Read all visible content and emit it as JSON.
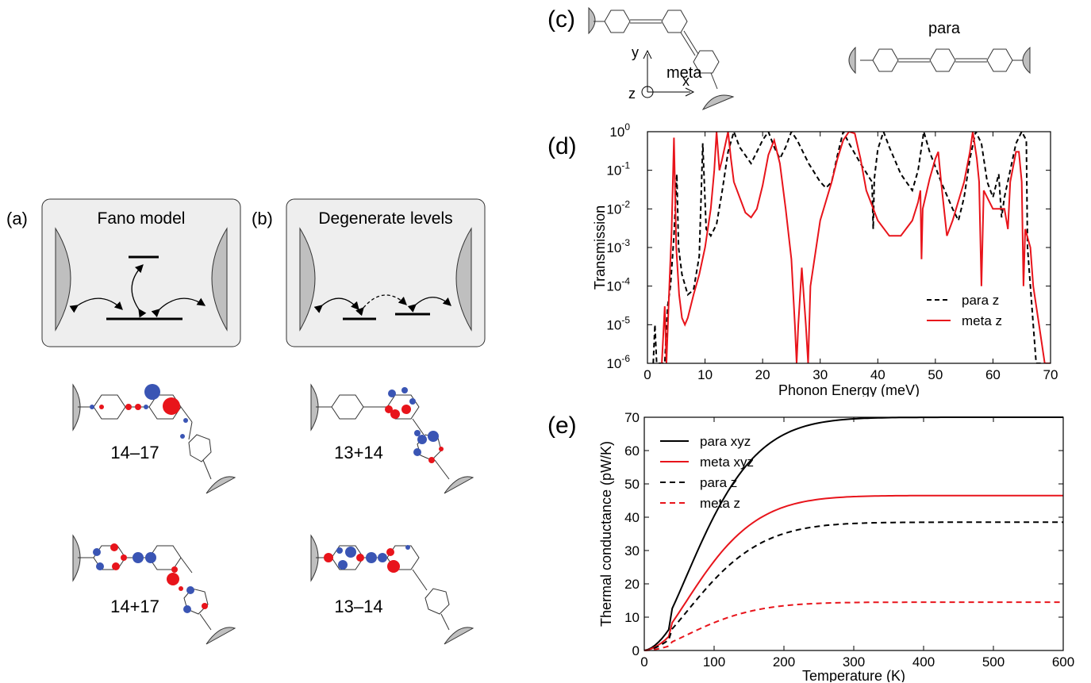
{
  "figure": {
    "panel_a": {
      "label": "(a)",
      "title": "Fano model"
    },
    "panel_b": {
      "label": "(b)",
      "title": "Degenerate levels"
    },
    "orbitals": [
      {
        "label": "14–17"
      },
      {
        "label": "13+14"
      },
      {
        "label": "14+17"
      },
      {
        "label": "13–14"
      }
    ],
    "panel_c": {
      "label": "(c)",
      "meta": "meta",
      "para": "para",
      "axes": {
        "y": "y",
        "x": "x",
        "z": "z"
      }
    },
    "panel_d": {
      "label": "(d)"
    },
    "panel_e": {
      "label": "(e)"
    },
    "colors": {
      "red": "#e8141b",
      "blue": "#3a55b4",
      "gray": "#bfbfbf",
      "box": "#eeeeee"
    }
  },
  "chart_data": [
    {
      "id": "d",
      "type": "line",
      "xlabel": "Phonon Energy  (meV)",
      "ylabel": "Transmission",
      "xlim": [
        0,
        70
      ],
      "ylim": [
        1e-06,
        1
      ],
      "yscale": "log",
      "xticks": [
        "0",
        "10",
        "20",
        "30",
        "40",
        "50",
        "60",
        "70"
      ],
      "yticks": [
        {
          "base": "10",
          "exp": "-6"
        },
        {
          "base": "10",
          "exp": "-5"
        },
        {
          "base": "10",
          "exp": "-4"
        },
        {
          "base": "10",
          "exp": "-3"
        },
        {
          "base": "10",
          "exp": "-2"
        },
        {
          "base": "10",
          "exp": "-1"
        },
        {
          "base": "10",
          "exp": "0"
        }
      ],
      "legend_position": "bottom-right",
      "series": [
        {
          "name": "para z",
          "color": "#000000",
          "dash": true,
          "points": [
            [
              1,
              1e-06
            ],
            [
              1.3,
              1e-05
            ],
            [
              1.6,
              1e-06
            ],
            [
              3,
              1e-06
            ],
            [
              3.5,
              3e-05
            ],
            [
              4,
              0.0001
            ],
            [
              4.6,
              0.002
            ],
            [
              5.1,
              0.08
            ],
            [
              5.4,
              0.001
            ],
            [
              6,
              0.0002
            ],
            [
              7,
              6e-05
            ],
            [
              8,
              8e-05
            ],
            [
              9,
              0.0006
            ],
            [
              9.6,
              0.5
            ],
            [
              10.2,
              0.003
            ],
            [
              11,
              0.002
            ],
            [
              12,
              0.004
            ],
            [
              13,
              0.03
            ],
            [
              14,
              0.3
            ],
            [
              15,
              1
            ],
            [
              16,
              0.4
            ],
            [
              18,
              0.15
            ],
            [
              20,
              0.6
            ],
            [
              21,
              1
            ],
            [
              22,
              0.4
            ],
            [
              23,
              0.2
            ],
            [
              24,
              0.4
            ],
            [
              25,
              1
            ],
            [
              26,
              0.6
            ],
            [
              28,
              0.15
            ],
            [
              30,
              0.05
            ],
            [
              31,
              0.035
            ],
            [
              32,
              0.05
            ],
            [
              33,
              0.25
            ],
            [
              34,
              1
            ],
            [
              35,
              0.5
            ],
            [
              37,
              0.15
            ],
            [
              39,
              0.05
            ],
            [
              39.2,
              0.003
            ],
            [
              39.4,
              0.06
            ],
            [
              40,
              0.35
            ],
            [
              41,
              1
            ],
            [
              42,
              0.4
            ],
            [
              44,
              0.08
            ],
            [
              46,
              0.03
            ],
            [
              47,
              0.1
            ],
            [
              48,
              1
            ],
            [
              49,
              0.3
            ],
            [
              51,
              0.05
            ],
            [
              53,
              0.01
            ],
            [
              54,
              0.005
            ],
            [
              55,
              0.02
            ],
            [
              56,
              0.2
            ],
            [
              57,
              1
            ],
            [
              58,
              0.5
            ],
            [
              59,
              0.05
            ],
            [
              60,
              0.02
            ],
            [
              61,
              0.08
            ],
            [
              61.5,
              0.006
            ],
            [
              62,
              0.02
            ],
            [
              63,
              0.1
            ],
            [
              64,
              0.5
            ],
            [
              65,
              1
            ],
            [
              65.8,
              0.6
            ],
            [
              66,
              0.001
            ],
            [
              66.5,
              0.0001
            ],
            [
              67,
              1e-05
            ],
            [
              67.5,
              1e-06
            ],
            [
              69,
              1e-06
            ]
          ]
        },
        {
          "name": "meta z",
          "color": "#e8141b",
          "dash": false,
          "points": [
            [
              2.5,
              1e-06
            ],
            [
              3,
              3e-05
            ],
            [
              3.3,
              1e-06
            ],
            [
              3.8,
              0.0001
            ],
            [
              4.2,
              0.003
            ],
            [
              4.6,
              0.7
            ],
            [
              5,
              0.001
            ],
            [
              5.5,
              6e-05
            ],
            [
              6,
              1.5e-05
            ],
            [
              6.5,
              1e-05
            ],
            [
              7,
              1.5e-05
            ],
            [
              8,
              6e-05
            ],
            [
              9,
              0.0002
            ],
            [
              10,
              0.001
            ],
            [
              11,
              0.01
            ],
            [
              11.6,
              0.1
            ],
            [
              12,
              1
            ],
            [
              12.5,
              0.1
            ],
            [
              13,
              0.2
            ],
            [
              14,
              1
            ],
            [
              14.5,
              0.2
            ],
            [
              15,
              0.05
            ],
            [
              17,
              0.008
            ],
            [
              18,
              0.006
            ],
            [
              19,
              0.01
            ],
            [
              20,
              0.04
            ],
            [
              21,
              0.25
            ],
            [
              22,
              0.6
            ],
            [
              23,
              0.15
            ],
            [
              24,
              0.01
            ],
            [
              25,
              0.0005
            ],
            [
              25.6,
              1e-05
            ],
            [
              25.9,
              1e-06
            ],
            [
              26.2,
              1e-05
            ],
            [
              26.8,
              0.0003
            ],
            [
              27.5,
              1e-05
            ],
            [
              27.9,
              1e-06
            ],
            [
              28.3,
              0.0001
            ],
            [
              30,
              0.005
            ],
            [
              32,
              0.05
            ],
            [
              33,
              0.2
            ],
            [
              34,
              0.6
            ],
            [
              35,
              1
            ],
            [
              36,
              0.9
            ],
            [
              37,
              0.2
            ],
            [
              38,
              0.03
            ],
            [
              40,
              0.005
            ],
            [
              42,
              0.002
            ],
            [
              44,
              0.002
            ],
            [
              46,
              0.005
            ],
            [
              47,
              0.015
            ],
            [
              47.4,
              0.03
            ],
            [
              47.6,
              0.0005
            ],
            [
              47.8,
              0.01
            ],
            [
              49,
              0.06
            ],
            [
              50,
              0.2
            ],
            [
              50.5,
              0.3
            ],
            [
              51,
              0.05
            ],
            [
              52,
              0.002
            ],
            [
              53,
              0.005
            ],
            [
              55,
              0.05
            ],
            [
              56,
              0.3
            ],
            [
              56.5,
              1
            ],
            [
              57.2,
              0.2
            ],
            [
              57.6,
              0.05
            ],
            [
              58,
              0.0001
            ],
            [
              58.4,
              0.03
            ],
            [
              60,
              0.01
            ],
            [
              61,
              0.01
            ],
            [
              62,
              0.01
            ],
            [
              62.6,
              0.003
            ],
            [
              63,
              0.05
            ],
            [
              64,
              0.3
            ],
            [
              64.5,
              0.3
            ],
            [
              65,
              0.05
            ],
            [
              65.3,
              0.0001
            ],
            [
              65.6,
              0.003
            ],
            [
              66.5,
              0.001
            ],
            [
              67,
              0.0001
            ],
            [
              68,
              1e-05
            ],
            [
              69,
              1e-06
            ],
            [
              70,
              1e-06
            ]
          ]
        }
      ]
    },
    {
      "id": "e",
      "type": "line",
      "xlabel": "Temperature  (K)",
      "ylabel": "Thermal conductance    (pW/K)",
      "xlim": [
        0,
        600
      ],
      "ylim": [
        0,
        70
      ],
      "xticks": [
        "0",
        "100",
        "200",
        "300",
        "400",
        "500",
        "600"
      ],
      "yticks": [
        "0",
        "10",
        "20",
        "30",
        "40",
        "50",
        "60",
        "70"
      ],
      "legend_position": "top-left",
      "series": [
        {
          "name": "para xyz",
          "color": "#000000",
          "dash": false,
          "saturation": 70,
          "theta": 110
        },
        {
          "name": "meta xyz",
          "color": "#e8141b",
          "dash": false,
          "saturation": 46.5,
          "theta": 110
        },
        {
          "name": "para z",
          "color": "#000000",
          "dash": true,
          "saturation": 38.5,
          "theta": 115
        },
        {
          "name": "meta z",
          "color": "#e8141b",
          "dash": true,
          "saturation": 14.5,
          "theta": 110
        }
      ]
    }
  ]
}
